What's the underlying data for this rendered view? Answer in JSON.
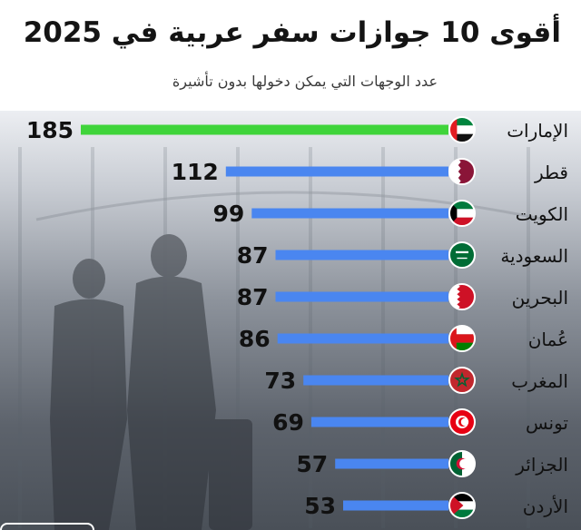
{
  "chart_data": {
    "type": "bar",
    "orientation": "horizontal",
    "title": "أقوى 10 جوازات سفر عربية في 2025",
    "subtitle": "عدد الوجهات التي يمكن دخولها بدون تأشيرة",
    "categories": [
      "الإمارات",
      "قطر",
      "الكويت",
      "السعودية",
      "البحرين",
      "عُمان",
      "المغرب",
      "تونس",
      "الجزائر",
      "الأردن"
    ],
    "values": [
      185,
      112,
      99,
      87,
      87,
      86,
      73,
      69,
      57,
      53
    ],
    "flags": [
      "uae-flag-icon",
      "qatar-flag-icon",
      "kuwait-flag-icon",
      "saudi-flag-icon",
      "bahrain-flag-icon",
      "oman-flag-icon",
      "morocco-flag-icon",
      "tunisia-flag-icon",
      "algeria-flag-icon",
      "jordan-flag-icon"
    ],
    "xlim": [
      0,
      185
    ],
    "grid": false,
    "legend": "none",
    "colors": {
      "highlight": "#3fd43a",
      "bar": "#4a86f0",
      "value_text": "#111111",
      "label_text": "#111111"
    }
  }
}
